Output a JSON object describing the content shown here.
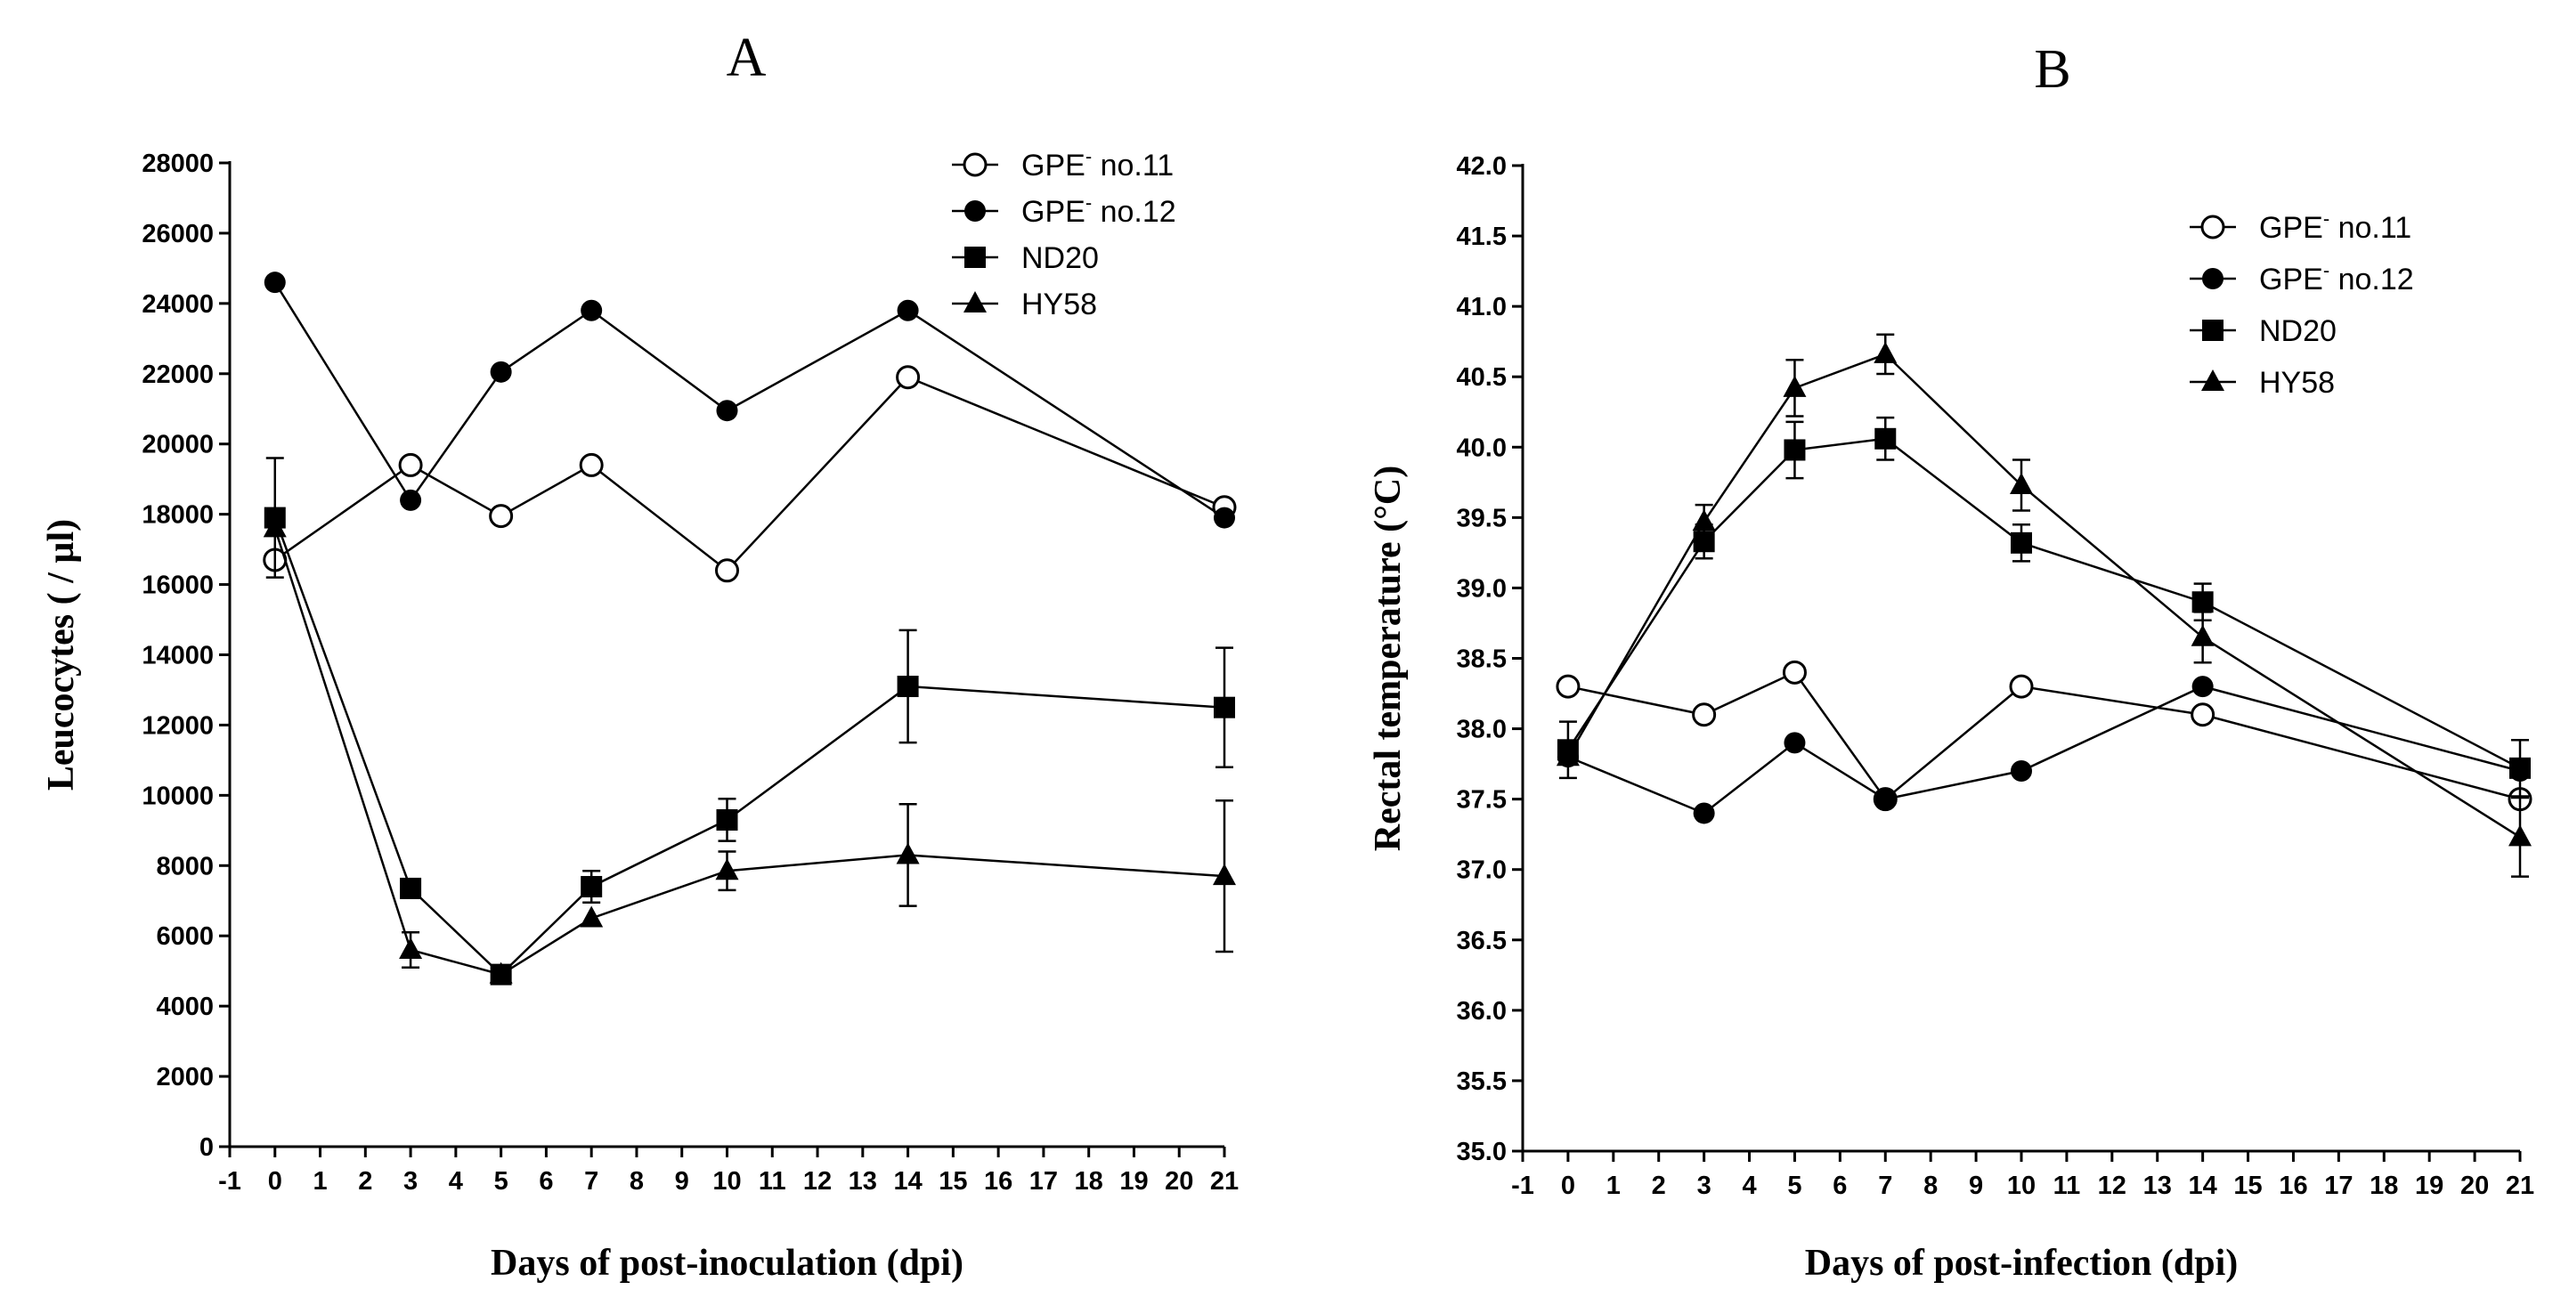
{
  "chart_data": [
    {
      "type": "line",
      "title": "A",
      "xlabel": "Days of post-inoculation (dpi)",
      "ylabel": "Leucocytes ( / µl)",
      "xlim": [
        -1,
        21
      ],
      "ylim": [
        0,
        28000
      ],
      "x_ticks": [
        "-1",
        "0",
        "1",
        "2",
        "3",
        "4",
        "5",
        "6",
        "7",
        "8",
        "9",
        "10",
        "11",
        "12",
        "13",
        "14",
        "15",
        "16",
        "17",
        "18",
        "19",
        "20",
        "21"
      ],
      "y_ticks": [
        "0",
        "2000",
        "4000",
        "6000",
        "8000",
        "10000",
        "12000",
        "14000",
        "16000",
        "18000",
        "20000",
        "22000",
        "24000",
        "26000",
        "28000"
      ],
      "y_tick_values": [
        0,
        2000,
        4000,
        6000,
        8000,
        10000,
        12000,
        14000,
        16000,
        18000,
        20000,
        22000,
        24000,
        26000,
        28000
      ],
      "grid": false,
      "legend_position": "top-right",
      "x": [
        0,
        3,
        5,
        7,
        10,
        14,
        21
      ],
      "series": [
        {
          "name": "GPE",
          "name_sup": "-",
          "name_suffix": " no.11",
          "marker": "open-circle",
          "values": [
            16700,
            19400,
            17950,
            19400,
            16400,
            21900,
            18200
          ],
          "errors": [
            0,
            0,
            0,
            0,
            0,
            0,
            0
          ]
        },
        {
          "name": "GPE",
          "name_sup": "-",
          "name_suffix": " no.12",
          "marker": "filled-circle",
          "values": [
            24600,
            18400,
            22050,
            23800,
            20950,
            23800,
            17900
          ],
          "errors": [
            0,
            0,
            0,
            0,
            0,
            0,
            0
          ]
        },
        {
          "name": "ND20",
          "name_sup": "",
          "name_suffix": "",
          "marker": "square",
          "values": [
            17900,
            7350,
            4900,
            7400,
            9300,
            13100,
            12500
          ],
          "errors": [
            1700,
            0,
            0,
            450,
            600,
            1600,
            1700
          ]
        },
        {
          "name": "HY58",
          "name_sup": "",
          "name_suffix": "",
          "marker": "triangle",
          "values": [
            17600,
            5600,
            4900,
            6500,
            7850,
            8300,
            7700
          ],
          "errors": [
            0,
            500,
            0,
            0,
            550,
            1450,
            2150
          ]
        }
      ]
    },
    {
      "type": "line",
      "title": "B",
      "xlabel": "Days of post-infection (dpi)",
      "ylabel": "Rectal temperature (°C)",
      "xlim": [
        -1,
        21
      ],
      "ylim": [
        35.0,
        42.0
      ],
      "x_ticks": [
        "-1",
        "0",
        "1",
        "2",
        "3",
        "4",
        "5",
        "6",
        "7",
        "8",
        "9",
        "10",
        "11",
        "12",
        "13",
        "14",
        "15",
        "16",
        "17",
        "18",
        "19",
        "20",
        "21"
      ],
      "y_ticks": [
        "35.0",
        "35.5",
        "36.0",
        "36.5",
        "37.0",
        "37.5",
        "38.0",
        "38.5",
        "39.0",
        "39.5",
        "40.0",
        "40.5",
        "41.0",
        "41.5",
        "42.0"
      ],
      "y_tick_values": [
        35.0,
        35.5,
        36.0,
        36.5,
        37.0,
        37.5,
        38.0,
        38.5,
        39.0,
        39.5,
        40.0,
        40.5,
        41.0,
        41.5,
        42.0
      ],
      "grid": false,
      "legend_position": "top-right",
      "x": [
        0,
        3,
        5,
        7,
        10,
        14,
        21
      ],
      "series": [
        {
          "name": "GPE",
          "name_sup": "-",
          "name_suffix": " no.11",
          "marker": "open-circle",
          "values": [
            38.3,
            38.1,
            38.4,
            37.5,
            38.3,
            38.1,
            37.5
          ],
          "errors": [
            0,
            0,
            0,
            0,
            0,
            0,
            0
          ]
        },
        {
          "name": "GPE",
          "name_sup": "-",
          "name_suffix": " no.12",
          "marker": "filled-circle",
          "values": [
            37.8,
            37.4,
            37.9,
            37.5,
            37.7,
            38.3,
            37.7
          ],
          "errors": [
            0,
            0,
            0,
            0,
            0,
            0,
            0
          ]
        },
        {
          "name": "ND20",
          "name_sup": "",
          "name_suffix": "",
          "marker": "square",
          "values": [
            37.85,
            39.33,
            39.98,
            40.06,
            39.32,
            38.9,
            37.72
          ],
          "errors": [
            0.2,
            0.12,
            0.2,
            0.15,
            0.13,
            0.13,
            0.2
          ]
        },
        {
          "name": "HY58",
          "name_sup": "",
          "name_suffix": "",
          "marker": "triangle",
          "values": [
            37.8,
            39.47,
            40.42,
            40.66,
            39.73,
            38.65,
            37.23
          ],
          "errors": [
            0,
            0.12,
            0.2,
            0.14,
            0.18,
            0.18,
            0.28
          ]
        }
      ]
    }
  ],
  "colors": {
    "ink": "#000000",
    "background": "#ffffff"
  }
}
